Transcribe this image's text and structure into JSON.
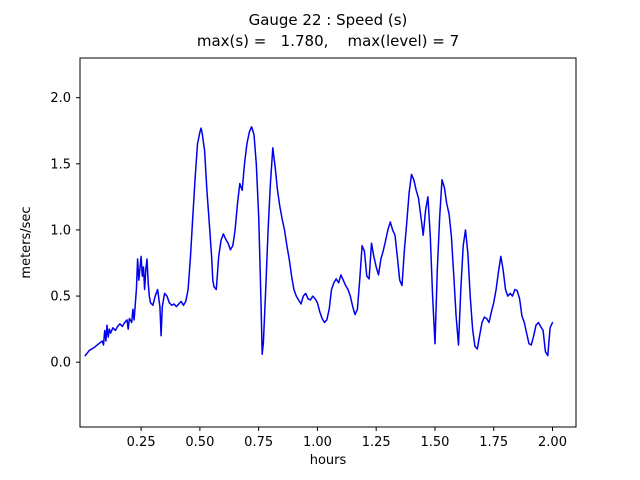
{
  "window": {
    "title_line1": "Gauge 22 : Speed (s)",
    "title_line2": "max(s) =   1.780,    max(level) = 7"
  },
  "chart_data": {
    "type": "line",
    "title": "Gauge 22 : Speed (s)",
    "subtitle": "max(s) =   1.780,    max(level) = 7",
    "xlabel": "hours",
    "ylabel": "meters/sec",
    "line_color": "#0000ee",
    "grid": false,
    "legend": "none",
    "xlim": [
      -0.01,
      2.1
    ],
    "ylim": [
      -0.49,
      2.3
    ],
    "x_tick_values": [
      0.25,
      0.5,
      0.75,
      1.0,
      1.25,
      1.5,
      1.75,
      2.0
    ],
    "x_tick_labels": [
      "0.25",
      "0.50",
      "0.75",
      "1.00",
      "1.25",
      "1.50",
      "1.75",
      "2.00"
    ],
    "y_tick_values": [
      0.0,
      0.5,
      1.0,
      1.5,
      2.0
    ],
    "y_tick_labels": [
      "0.0",
      "0.5",
      "1.0",
      "1.5",
      "2.0"
    ],
    "max_s": 1.78,
    "max_level": 7,
    "points": [
      [
        0.012,
        0.05
      ],
      [
        0.03,
        0.09
      ],
      [
        0.05,
        0.11
      ],
      [
        0.07,
        0.14
      ],
      [
        0.085,
        0.16
      ],
      [
        0.09,
        0.13
      ],
      [
        0.095,
        0.24
      ],
      [
        0.1,
        0.16
      ],
      [
        0.105,
        0.28
      ],
      [
        0.11,
        0.19
      ],
      [
        0.115,
        0.25
      ],
      [
        0.12,
        0.22
      ],
      [
        0.13,
        0.26
      ],
      [
        0.14,
        0.24
      ],
      [
        0.15,
        0.27
      ],
      [
        0.16,
        0.29
      ],
      [
        0.17,
        0.27
      ],
      [
        0.18,
        0.3
      ],
      [
        0.19,
        0.32
      ],
      [
        0.195,
        0.25
      ],
      [
        0.2,
        0.33
      ],
      [
        0.21,
        0.3
      ],
      [
        0.215,
        0.4
      ],
      [
        0.22,
        0.32
      ],
      [
        0.23,
        0.55
      ],
      [
        0.235,
        0.78
      ],
      [
        0.24,
        0.62
      ],
      [
        0.25,
        0.8
      ],
      [
        0.255,
        0.65
      ],
      [
        0.26,
        0.72
      ],
      [
        0.265,
        0.55
      ],
      [
        0.27,
        0.7
      ],
      [
        0.275,
        0.78
      ],
      [
        0.28,
        0.6
      ],
      [
        0.285,
        0.5
      ],
      [
        0.29,
        0.45
      ],
      [
        0.3,
        0.43
      ],
      [
        0.31,
        0.5
      ],
      [
        0.32,
        0.55
      ],
      [
        0.33,
        0.42
      ],
      [
        0.335,
        0.2
      ],
      [
        0.34,
        0.42
      ],
      [
        0.35,
        0.52
      ],
      [
        0.36,
        0.5
      ],
      [
        0.37,
        0.45
      ],
      [
        0.38,
        0.43
      ],
      [
        0.39,
        0.44
      ],
      [
        0.4,
        0.42
      ],
      [
        0.41,
        0.44
      ],
      [
        0.42,
        0.46
      ],
      [
        0.43,
        0.43
      ],
      [
        0.44,
        0.46
      ],
      [
        0.45,
        0.55
      ],
      [
        0.46,
        0.8
      ],
      [
        0.47,
        1.1
      ],
      [
        0.48,
        1.4
      ],
      [
        0.49,
        1.65
      ],
      [
        0.5,
        1.74
      ],
      [
        0.505,
        1.77
      ],
      [
        0.51,
        1.73
      ],
      [
        0.52,
        1.6
      ],
      [
        0.53,
        1.3
      ],
      [
        0.54,
        1.05
      ],
      [
        0.55,
        0.8
      ],
      [
        0.555,
        0.62
      ],
      [
        0.56,
        0.57
      ],
      [
        0.57,
        0.55
      ],
      [
        0.58,
        0.8
      ],
      [
        0.59,
        0.92
      ],
      [
        0.6,
        0.97
      ],
      [
        0.61,
        0.93
      ],
      [
        0.62,
        0.9
      ],
      [
        0.63,
        0.85
      ],
      [
        0.64,
        0.88
      ],
      [
        0.65,
        1.0
      ],
      [
        0.66,
        1.2
      ],
      [
        0.67,
        1.35
      ],
      [
        0.68,
        1.3
      ],
      [
        0.69,
        1.5
      ],
      [
        0.7,
        1.65
      ],
      [
        0.71,
        1.74
      ],
      [
        0.72,
        1.78
      ],
      [
        0.73,
        1.72
      ],
      [
        0.74,
        1.5
      ],
      [
        0.75,
        1.1
      ],
      [
        0.755,
        0.8
      ],
      [
        0.76,
        0.45
      ],
      [
        0.765,
        0.06
      ],
      [
        0.77,
        0.15
      ],
      [
        0.78,
        0.55
      ],
      [
        0.79,
        1.0
      ],
      [
        0.8,
        1.35
      ],
      [
        0.81,
        1.62
      ],
      [
        0.815,
        1.55
      ],
      [
        0.82,
        1.48
      ],
      [
        0.83,
        1.3
      ],
      [
        0.84,
        1.18
      ],
      [
        0.85,
        1.08
      ],
      [
        0.86,
        1.0
      ],
      [
        0.87,
        0.88
      ],
      [
        0.88,
        0.78
      ],
      [
        0.89,
        0.65
      ],
      [
        0.9,
        0.55
      ],
      [
        0.91,
        0.5
      ],
      [
        0.92,
        0.47
      ],
      [
        0.93,
        0.44
      ],
      [
        0.94,
        0.5
      ],
      [
        0.95,
        0.52
      ],
      [
        0.96,
        0.48
      ],
      [
        0.97,
        0.47
      ],
      [
        0.98,
        0.5
      ],
      [
        0.99,
        0.48
      ],
      [
        1.0,
        0.45
      ],
      [
        1.01,
        0.38
      ],
      [
        1.02,
        0.33
      ],
      [
        1.03,
        0.3
      ],
      [
        1.04,
        0.32
      ],
      [
        1.05,
        0.4
      ],
      [
        1.06,
        0.55
      ],
      [
        1.07,
        0.6
      ],
      [
        1.08,
        0.63
      ],
      [
        1.09,
        0.6
      ],
      [
        1.1,
        0.66
      ],
      [
        1.11,
        0.62
      ],
      [
        1.12,
        0.58
      ],
      [
        1.13,
        0.55
      ],
      [
        1.14,
        0.5
      ],
      [
        1.15,
        0.42
      ],
      [
        1.16,
        0.36
      ],
      [
        1.17,
        0.4
      ],
      [
        1.18,
        0.62
      ],
      [
        1.19,
        0.88
      ],
      [
        1.2,
        0.84
      ],
      [
        1.21,
        0.65
      ],
      [
        1.22,
        0.63
      ],
      [
        1.23,
        0.9
      ],
      [
        1.24,
        0.8
      ],
      [
        1.25,
        0.72
      ],
      [
        1.26,
        0.66
      ],
      [
        1.27,
        0.78
      ],
      [
        1.28,
        0.84
      ],
      [
        1.29,
        0.92
      ],
      [
        1.3,
        1.0
      ],
      [
        1.31,
        1.06
      ],
      [
        1.32,
        1.0
      ],
      [
        1.33,
        0.96
      ],
      [
        1.34,
        0.8
      ],
      [
        1.35,
        0.62
      ],
      [
        1.36,
        0.58
      ],
      [
        1.37,
        0.85
      ],
      [
        1.38,
        1.05
      ],
      [
        1.39,
        1.28
      ],
      [
        1.4,
        1.42
      ],
      [
        1.41,
        1.38
      ],
      [
        1.42,
        1.3
      ],
      [
        1.43,
        1.24
      ],
      [
        1.44,
        1.1
      ],
      [
        1.45,
        0.96
      ],
      [
        1.46,
        1.15
      ],
      [
        1.47,
        1.25
      ],
      [
        1.48,
        0.95
      ],
      [
        1.49,
        0.5
      ],
      [
        1.5,
        0.14
      ],
      [
        1.51,
        0.7
      ],
      [
        1.52,
        1.1
      ],
      [
        1.53,
        1.38
      ],
      [
        1.54,
        1.32
      ],
      [
        1.55,
        1.2
      ],
      [
        1.56,
        1.12
      ],
      [
        1.57,
        0.95
      ],
      [
        1.58,
        0.65
      ],
      [
        1.59,
        0.35
      ],
      [
        1.6,
        0.13
      ],
      [
        1.61,
        0.55
      ],
      [
        1.62,
        0.88
      ],
      [
        1.63,
        1.0
      ],
      [
        1.64,
        0.82
      ],
      [
        1.65,
        0.5
      ],
      [
        1.66,
        0.25
      ],
      [
        1.67,
        0.12
      ],
      [
        1.68,
        0.1
      ],
      [
        1.69,
        0.2
      ],
      [
        1.7,
        0.3
      ],
      [
        1.71,
        0.34
      ],
      [
        1.72,
        0.33
      ],
      [
        1.73,
        0.3
      ],
      [
        1.74,
        0.38
      ],
      [
        1.75,
        0.45
      ],
      [
        1.76,
        0.55
      ],
      [
        1.77,
        0.68
      ],
      [
        1.78,
        0.8
      ],
      [
        1.79,
        0.7
      ],
      [
        1.8,
        0.55
      ],
      [
        1.81,
        0.5
      ],
      [
        1.82,
        0.52
      ],
      [
        1.83,
        0.5
      ],
      [
        1.84,
        0.55
      ],
      [
        1.85,
        0.54
      ],
      [
        1.86,
        0.48
      ],
      [
        1.87,
        0.35
      ],
      [
        1.88,
        0.3
      ],
      [
        1.89,
        0.22
      ],
      [
        1.9,
        0.14
      ],
      [
        1.91,
        0.13
      ],
      [
        1.92,
        0.2
      ],
      [
        1.93,
        0.28
      ],
      [
        1.94,
        0.3
      ],
      [
        1.95,
        0.27
      ],
      [
        1.96,
        0.24
      ],
      [
        1.97,
        0.08
      ],
      [
        1.98,
        0.05
      ],
      [
        1.99,
        0.26
      ],
      [
        2.0,
        0.3
      ]
    ]
  }
}
